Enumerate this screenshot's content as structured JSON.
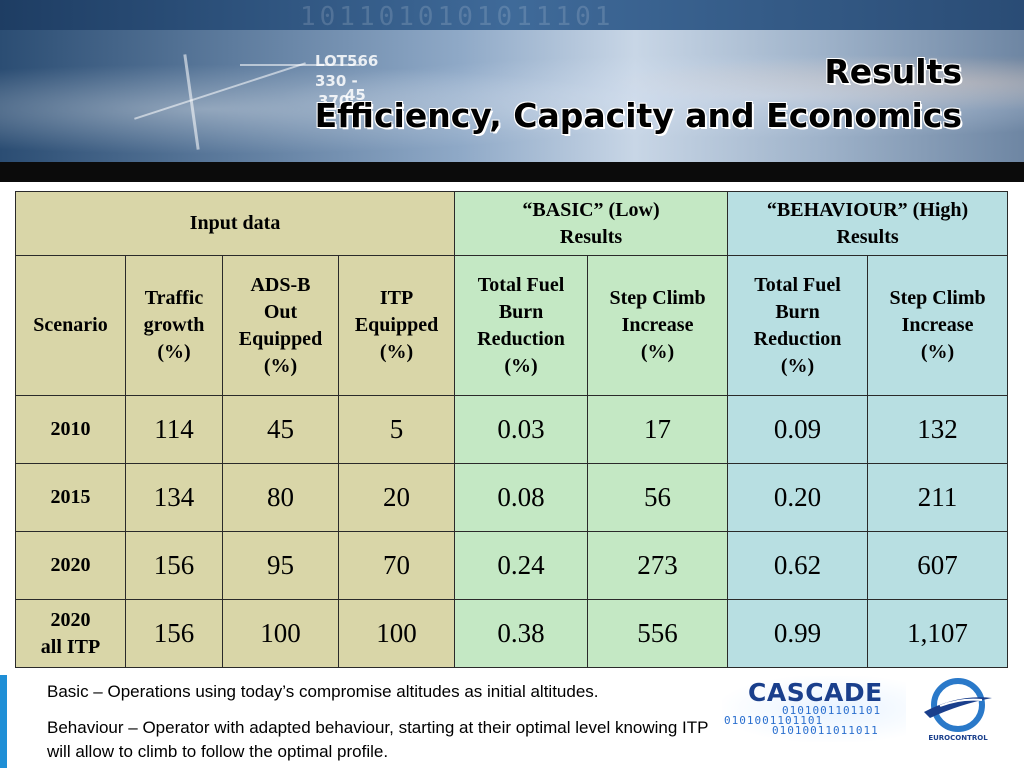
{
  "slide": {
    "title_line1": "Results",
    "title_line2": "Efficiency, Capacity and Economics"
  },
  "banner": {
    "binary_text": "1011010101011101",
    "radar_labels": [
      "LOT566",
      "330 -",
      "45",
      "370"
    ]
  },
  "table": {
    "group_headers": {
      "input": "Input data",
      "basic_line1": "“BASIC” (Low)",
      "basic_line2": "Results",
      "behaviour_line1": "“BEHAVIOUR” (High)",
      "behaviour_line2": "Results"
    },
    "column_headers": {
      "scenario": "Scenario",
      "traffic": [
        "Traffic",
        "growth",
        "(%)"
      ],
      "adsb": [
        "ADS-B",
        "Out",
        "Equipped",
        "(%)"
      ],
      "itp": [
        "ITP",
        "Equipped",
        "(%)"
      ],
      "basic_fuel": [
        "Total Fuel",
        "Burn",
        "Reduction",
        "(%)"
      ],
      "basic_step": [
        "Step Climb",
        "Increase",
        "(%)"
      ],
      "behav_fuel": [
        "Total Fuel",
        "Burn",
        "Reduction",
        "(%)"
      ],
      "behav_step": [
        "Step Climb",
        "Increase",
        "(%)"
      ]
    },
    "rows": [
      {
        "scenario": [
          "2010"
        ],
        "traffic": "114",
        "adsb": "45",
        "itp": "5",
        "basic_fuel": "0.03",
        "basic_step": "17",
        "behav_fuel": "0.09",
        "behav_step": "132"
      },
      {
        "scenario": [
          "2015"
        ],
        "traffic": "134",
        "adsb": "80",
        "itp": "20",
        "basic_fuel": "0.08",
        "basic_step": "56",
        "behav_fuel": "0.20",
        "behav_step": "211"
      },
      {
        "scenario": [
          "2020"
        ],
        "traffic": "156",
        "adsb": "95",
        "itp": "70",
        "basic_fuel": "0.24",
        "basic_step": "273",
        "behav_fuel": "0.62",
        "behav_step": "607"
      },
      {
        "scenario": [
          "2020",
          "all ITP"
        ],
        "traffic": "156",
        "adsb": "100",
        "itp": "100",
        "basic_fuel": "0.38",
        "basic_step": "556",
        "behav_fuel": "0.99",
        "behav_step": "1,107"
      }
    ]
  },
  "notes": {
    "basic": "Basic – Operations using today’s compromise altitudes as initial altitudes.",
    "behaviour": "Behaviour – Operator with adapted behaviour, starting at their optimal level knowing ITP will allow to climb to follow the optimal profile."
  },
  "logos": {
    "cascade": "CASCADE",
    "cascade_bin1": "0101001101101",
    "cascade_bin2": "0101001101101",
    "cascade_bin3": "01010011011011",
    "eurocontrol": "EUROCONTROL"
  },
  "colors": {
    "input_bg": "#d9d6a8",
    "basic_bg": "#c4e8c4",
    "behaviour_bg": "#b8dfe2",
    "accent_bar": "#1f8fd6"
  }
}
